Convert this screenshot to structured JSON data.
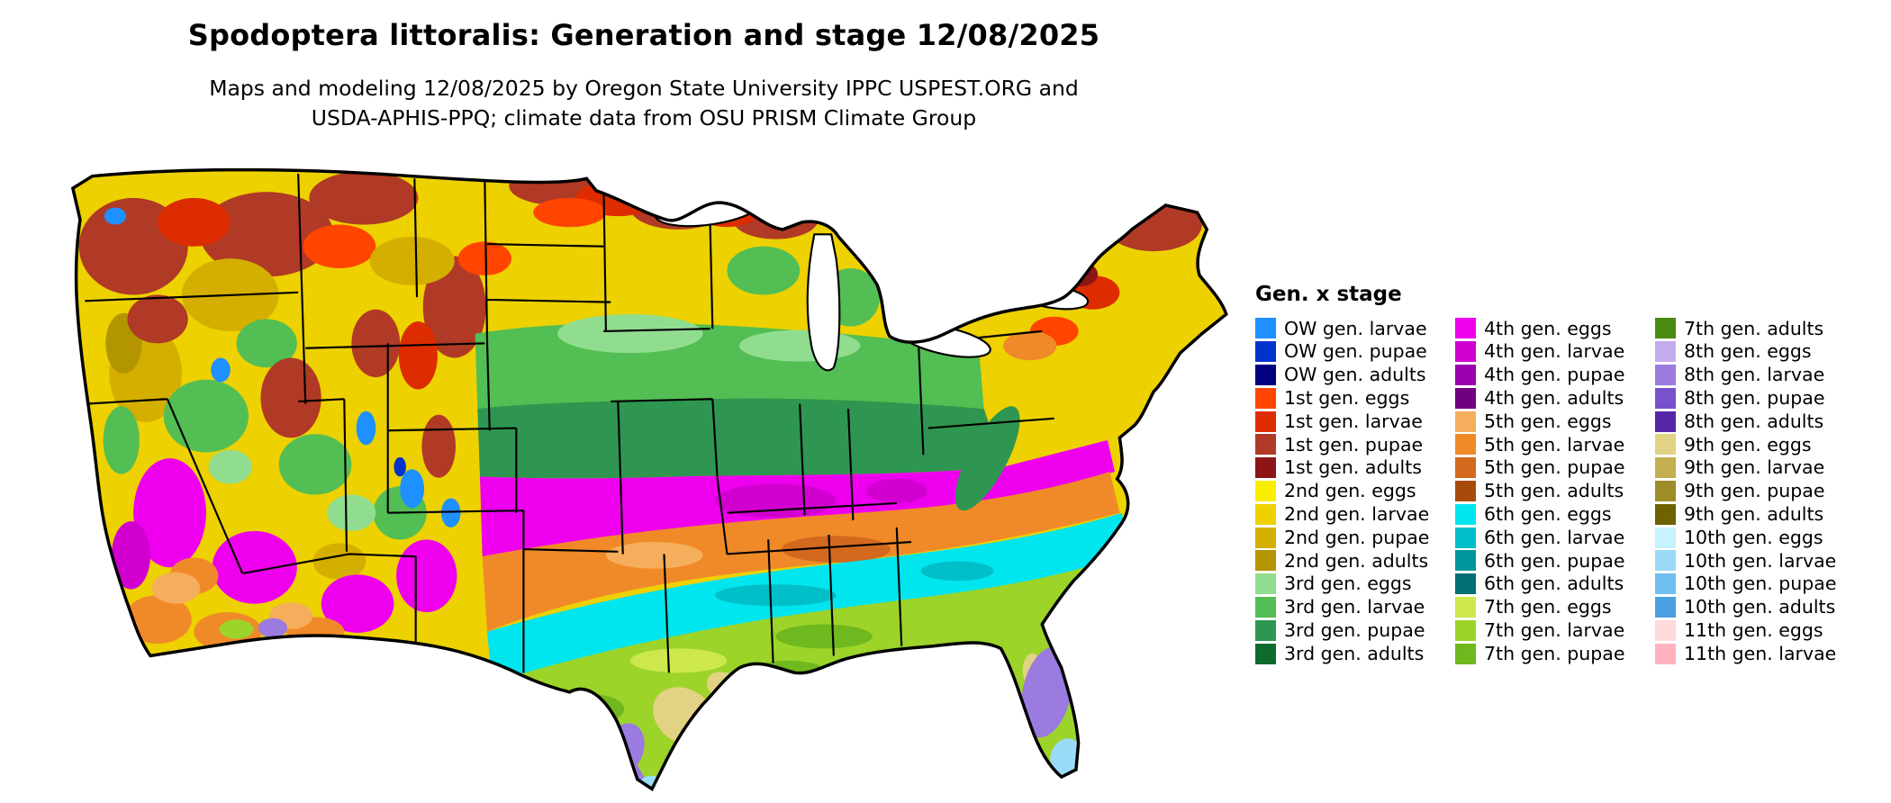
{
  "header": {
    "title": "Spodoptera littoralis: Generation and stage 12/08/2025",
    "subtitle_line1": "Maps and modeling 12/08/2025 by Oregon State University IPPC USPEST.ORG and",
    "subtitle_line2": "USDA-APHIS-PPQ; climate data from OSU PRISM Climate Group"
  },
  "legend": {
    "title": "Gen. x stage",
    "columns": [
      [
        {
          "label": "OW gen. larvae",
          "key": "ow_larvae"
        },
        {
          "label": "OW gen. pupae",
          "key": "ow_pupae"
        },
        {
          "label": "OW gen. adults",
          "key": "ow_adults"
        },
        {
          "label": "1st gen. eggs",
          "key": "g1_eggs"
        },
        {
          "label": "1st gen. larvae",
          "key": "g1_larvae"
        },
        {
          "label": "1st gen. pupae",
          "key": "g1_pupae"
        },
        {
          "label": "1st gen. adults",
          "key": "g1_adults"
        },
        {
          "label": "2nd gen. eggs",
          "key": "g2_eggs"
        },
        {
          "label": "2nd gen. larvae",
          "key": "g2_larvae"
        },
        {
          "label": "2nd gen. pupae",
          "key": "g2_pupae"
        },
        {
          "label": "2nd gen. adults",
          "key": "g2_adults"
        },
        {
          "label": "3rd gen. eggs",
          "key": "g3_eggs"
        },
        {
          "label": "3rd gen. larvae",
          "key": "g3_larvae"
        },
        {
          "label": "3rd gen. pupae",
          "key": "g3_pupae"
        },
        {
          "label": "3rd gen. adults",
          "key": "g3_adults"
        }
      ],
      [
        {
          "label": "4th gen. eggs",
          "key": "g4_eggs"
        },
        {
          "label": "4th gen. larvae",
          "key": "g4_larvae"
        },
        {
          "label": "4th gen. pupae",
          "key": "g4_pupae"
        },
        {
          "label": "4th gen. adults",
          "key": "g4_adults"
        },
        {
          "label": "5th gen. eggs",
          "key": "g5_eggs"
        },
        {
          "label": "5th gen. larvae",
          "key": "g5_larvae"
        },
        {
          "label": "5th gen. pupae",
          "key": "g5_pupae"
        },
        {
          "label": "5th gen. adults",
          "key": "g5_adults"
        },
        {
          "label": "6th gen. eggs",
          "key": "g6_eggs"
        },
        {
          "label": "6th gen. larvae",
          "key": "g6_larvae"
        },
        {
          "label": "6th gen. pupae",
          "key": "g6_pupae"
        },
        {
          "label": "6th gen. adults",
          "key": "g6_adults"
        },
        {
          "label": "7th gen. eggs",
          "key": "g7_eggs"
        },
        {
          "label": "7th gen. larvae",
          "key": "g7_larvae"
        },
        {
          "label": "7th gen. pupae",
          "key": "g7_pupae"
        }
      ],
      [
        {
          "label": "7th gen. adults",
          "key": "g7_adults"
        },
        {
          "label": "8th gen. eggs",
          "key": "g8_eggs"
        },
        {
          "label": "8th gen. larvae",
          "key": "g8_larvae"
        },
        {
          "label": "8th gen. pupae",
          "key": "g8_pupae"
        },
        {
          "label": "8th gen. adults",
          "key": "g8_adults"
        },
        {
          "label": "9th gen. eggs",
          "key": "g9_eggs"
        },
        {
          "label": "9th gen. larvae",
          "key": "g9_larvae"
        },
        {
          "label": "9th gen. pupae",
          "key": "g9_pupae"
        },
        {
          "label": "9th gen. adults",
          "key": "g9_adults"
        },
        {
          "label": "10th gen. eggs",
          "key": "g10_eggs"
        },
        {
          "label": "10th gen. larvae",
          "key": "g10_larvae"
        },
        {
          "label": "10th gen. pupae",
          "key": "g10_pupae"
        },
        {
          "label": "10th gen. adults",
          "key": "g10_adults"
        },
        {
          "label": "11th gen. eggs",
          "key": "g11_eggs"
        },
        {
          "label": "11th gen. larvae",
          "key": "g11_larvae"
        }
      ]
    ]
  },
  "palette": {
    "ow_larvae": "#1E90FF",
    "ow_pupae": "#0033CC",
    "ow_adults": "#000080",
    "g1_eggs": "#FF4500",
    "g1_larvae": "#DD2C00",
    "g1_pupae": "#B03A26",
    "g1_adults": "#8C1616",
    "g2_eggs": "#FAEE00",
    "g2_larvae": "#EDD100",
    "g2_pupae": "#D4AF00",
    "g2_adults": "#B39500",
    "g3_eggs": "#90DD90",
    "g3_larvae": "#53BE53",
    "g3_pupae": "#2E9650",
    "g3_adults": "#0D6B2B",
    "g4_eggs": "#EE00EE",
    "g4_larvae": "#D100D1",
    "g4_pupae": "#9B00AE",
    "g4_adults": "#700080",
    "g5_eggs": "#F5AE5C",
    "g5_larvae": "#F08A28",
    "g5_pupae": "#D2691E",
    "g5_adults": "#A64B0A",
    "g6_eggs": "#00E5EE",
    "g6_larvae": "#00BFC8",
    "g6_pupae": "#00969E",
    "g6_adults": "#006E74",
    "g7_eggs": "#CCE84D",
    "g7_larvae": "#9CD42A",
    "g7_pupae": "#6FB81E",
    "g7_adults": "#4A8A10",
    "g8_eggs": "#C4ABEE",
    "g8_larvae": "#9B7BDF",
    "g8_pupae": "#7A50CC",
    "g8_adults": "#5526A8",
    "g9_eggs": "#E2D284",
    "g9_larvae": "#C3AF50",
    "g9_pupae": "#9E8C28",
    "g9_adults": "#6F6200",
    "g10_eggs": "#C6F3FF",
    "g10_larvae": "#9ADCF8",
    "g10_pupae": "#6FBFF0",
    "g10_adults": "#4A9FE0",
    "g11_eggs": "#FFD9DC",
    "g11_larvae": "#FFB3BE"
  }
}
